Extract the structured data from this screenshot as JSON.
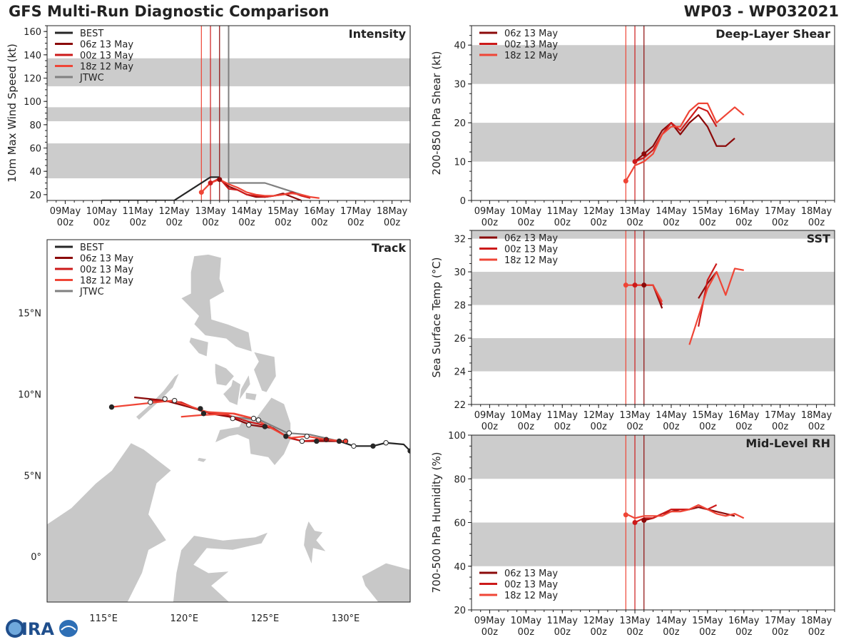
{
  "header": {
    "title": "GFS Multi-Run Diagnostic Comparison",
    "storm_id": "WP03 - WP032021"
  },
  "colors": {
    "best": "#262626",
    "jtwc": "#808080",
    "run_06z": "#8b0a0a",
    "run_00z": "#cc1a1a",
    "run_18z": "#ef4536",
    "band": "#cccccc",
    "land": "#c8c8c8"
  },
  "time_axis": {
    "labels": [
      "09May\n00z",
      "10May\n00z",
      "11May\n00z",
      "12May\n00z",
      "13May\n00z",
      "14May\n00z",
      "15May\n00z",
      "16May\n00z",
      "17May\n00z",
      "18May\n00z"
    ],
    "day_offsets": [
      0,
      1,
      2,
      3,
      4,
      5,
      6,
      7,
      8,
      9
    ],
    "range": [
      -0.5,
      9.5
    ],
    "init_lines": [
      {
        "run": "18z 12 May",
        "t": 3.75
      },
      {
        "run": "00z 13 May",
        "t": 4.0
      },
      {
        "run": "06z 13 May",
        "t": 4.25
      },
      {
        "run": "JTWC",
        "t": 4.5
      }
    ]
  },
  "legend_runs": [
    "06z 13 May",
    "00z 13 May",
    "18z 12 May"
  ],
  "chart_data": [
    {
      "id": "intensity",
      "type": "line",
      "title": "Intensity",
      "ylabel": "10m Max Wind Speed (kt)",
      "ylim": [
        15,
        165
      ],
      "yticks": [
        20,
        40,
        60,
        80,
        100,
        120,
        140,
        160
      ],
      "bands": [
        [
          34,
          64
        ],
        [
          83,
          95
        ],
        [
          113,
          137
        ]
      ],
      "legend": [
        "BEST",
        "06z 13 May",
        "00z 13 May",
        "18z 12 May",
        "JTWC"
      ],
      "series": [
        {
          "name": "BEST",
          "color_key": "best",
          "x": [
            1,
            2,
            3,
            4,
            4.25
          ],
          "y": [
            15,
            15,
            15,
            35,
            35
          ]
        },
        {
          "name": "JTWC",
          "color_key": "jtwc",
          "x": [
            4.5,
            5.5,
            6.5
          ],
          "y": [
            30,
            30,
            20
          ]
        },
        {
          "name": "06z 13 May",
          "color_key": "run_06z",
          "x": [
            4.25,
            4.5,
            4.75,
            5,
            5.25,
            5.5,
            5.75,
            6,
            6.25,
            6.5
          ],
          "y": [
            33,
            27,
            24,
            20,
            18,
            18,
            19,
            21,
            18,
            15
          ]
        },
        {
          "name": "00z 13 May",
          "color_key": "run_00z",
          "x": [
            4,
            4.25,
            4.5,
            4.75,
            5,
            5.25,
            5.5,
            5.75,
            6,
            6.25,
            6.5,
            6.75
          ],
          "y": [
            30,
            34,
            25,
            24,
            20,
            19,
            18,
            19,
            20,
            22,
            19,
            17
          ]
        },
        {
          "name": "18z 12 May",
          "color_key": "run_18z",
          "x": [
            3.75,
            4,
            4.25,
            4.5,
            4.75,
            5,
            5.25,
            5.5,
            5.75,
            6,
            6.25,
            6.5,
            6.75,
            7
          ],
          "y": [
            22,
            30,
            33,
            29,
            26,
            22,
            20,
            19,
            19,
            20,
            21,
            20,
            18,
            17
          ]
        }
      ]
    },
    {
      "id": "shear",
      "type": "line",
      "title": "Deep-Layer Shear",
      "ylabel": "200-850 hPa Shear (kt)",
      "ylim": [
        0,
        45
      ],
      "yticks": [
        0,
        10,
        20,
        30,
        40
      ],
      "bands": [
        [
          10,
          20
        ],
        [
          30,
          40
        ]
      ],
      "legend": [
        "06z 13 May",
        "00z 13 May",
        "18z 12 May"
      ],
      "series": [
        {
          "name": "06z 13 May",
          "color_key": "run_06z",
          "x": [
            4,
            4.25,
            4.5,
            4.75,
            5,
            5.25,
            5.5,
            5.75,
            6,
            6.25,
            6.5,
            6.75
          ],
          "y": [
            10,
            12,
            14,
            18,
            20,
            17,
            20,
            22,
            19,
            14,
            14,
            16
          ]
        },
        {
          "name": "00z 13 May",
          "color_key": "run_00z",
          "x": [
            4,
            4.25,
            4.5,
            4.75,
            5,
            5.25,
            5.5,
            5.75,
            6,
            6.25
          ],
          "y": [
            10,
            11,
            13,
            17,
            20,
            18,
            21,
            24,
            23,
            19
          ]
        },
        {
          "name": "18z 12 May",
          "color_key": "run_18z",
          "x": [
            3.75,
            4,
            4.25,
            4.5,
            4.75,
            5,
            5.25,
            5.5,
            5.75,
            6,
            6.25,
            6.5,
            6.75,
            7
          ],
          "y": [
            5,
            9,
            10,
            12,
            17,
            19,
            19,
            23,
            25,
            25,
            20,
            22,
            24,
            22
          ]
        }
      ],
      "markers": [
        {
          "color_key": "run_18z",
          "x": 3.75,
          "y": 5
        },
        {
          "color_key": "run_00z",
          "x": 4,
          "y": 10
        },
        {
          "color_key": "run_06z",
          "x": 4.25,
          "y": 12
        }
      ]
    },
    {
      "id": "sst",
      "type": "line",
      "title": "SST",
      "ylabel": "Sea Surface Temp (°C)",
      "ylim": [
        22,
        32.5
      ],
      "yticks": [
        22,
        24,
        26,
        28,
        30,
        32
      ],
      "bands": [
        [
          24,
          26
        ],
        [
          28,
          30
        ],
        [
          32,
          33
        ]
      ],
      "legend": [
        "06z 13 May",
        "00z 13 May",
        "18z 12 May"
      ],
      "series": [
        {
          "name": "06z 13 May",
          "color_key": "run_06z",
          "x": [
            4.25,
            4.5,
            4.75
          ],
          "y": [
            29.2,
            29.2,
            27.8
          ]
        },
        {
          "name": "06z 13 May b",
          "color_key": "run_06z",
          "x": [
            5.75,
            6,
            6.25
          ],
          "y": [
            28.4,
            29.3,
            30.0
          ]
        },
        {
          "name": "00z 13 May",
          "color_key": "run_00z",
          "x": [
            4,
            4.25,
            4.5,
            4.75
          ],
          "y": [
            29.2,
            29.2,
            29.2,
            28.0
          ]
        },
        {
          "name": "00z 13 May b",
          "color_key": "run_00z",
          "x": [
            5.75,
            6,
            6.25
          ],
          "y": [
            26.7,
            29.5,
            30.5
          ]
        },
        {
          "name": "18z 12 May",
          "color_key": "run_18z",
          "x": [
            3.75,
            4,
            4.25,
            4.5,
            4.75
          ],
          "y": [
            29.2,
            29.2,
            29.2,
            29.2,
            28.2
          ]
        },
        {
          "name": "18z 12 May b",
          "color_key": "run_18z",
          "x": [
            5.5,
            6,
            6.25,
            6.5,
            6.75,
            7
          ],
          "y": [
            25.6,
            29.0,
            30.0,
            28.6,
            30.2,
            30.1
          ]
        }
      ],
      "markers": [
        {
          "color_key": "run_18z",
          "x": 3.75,
          "y": 29.2
        },
        {
          "color_key": "run_00z",
          "x": 4,
          "y": 29.2
        },
        {
          "color_key": "run_06z",
          "x": 4.25,
          "y": 29.2
        }
      ]
    },
    {
      "id": "rh",
      "type": "line",
      "title": "Mid-Level RH",
      "ylabel": "700-500 hPa Humidity (%)",
      "ylim": [
        20,
        100
      ],
      "yticks": [
        20,
        40,
        60,
        80,
        100
      ],
      "bands": [
        [
          40,
          60
        ],
        [
          80,
          100
        ]
      ],
      "legend": [
        "06z 13 May",
        "00z 13 May",
        "18z 12 May"
      ],
      "series": [
        {
          "name": "06z 13 May",
          "color_key": "run_06z",
          "x": [
            4.25,
            4.5,
            4.75,
            5,
            5.25,
            5.5,
            5.75,
            6,
            6.25,
            6.5,
            6.75
          ],
          "y": [
            61,
            62,
            64,
            65,
            66,
            66,
            67,
            66,
            65,
            64,
            63
          ]
        },
        {
          "name": "00z 13 May",
          "color_key": "run_00z",
          "x": [
            4,
            4.25,
            4.5,
            4.75,
            5,
            5.25,
            5.5,
            5.75,
            6,
            6.25
          ],
          "y": [
            60,
            62,
            62,
            64,
            66,
            66,
            66,
            68,
            66,
            68
          ]
        },
        {
          "name": "18z 12 May",
          "color_key": "run_18z",
          "x": [
            3.75,
            4,
            4.25,
            4.5,
            4.75,
            5,
            5.25,
            5.5,
            5.75,
            6,
            6.25,
            6.5,
            6.75,
            7
          ],
          "y": [
            64,
            62,
            63,
            63,
            63,
            65,
            65,
            66,
            68,
            66,
            64,
            63,
            64,
            62
          ]
        }
      ],
      "markers": [
        {
          "color_key": "run_18z",
          "x": 3.75,
          "y": 63.5
        },
        {
          "color_key": "run_00z",
          "x": 4,
          "y": 60
        },
        {
          "color_key": "run_06z",
          "x": 4.25,
          "y": 61
        }
      ]
    },
    {
      "id": "track",
      "type": "scatter",
      "title": "Track",
      "legend": [
        "BEST",
        "06z 13 May",
        "00z 13 May",
        "18z 12 May",
        "JTWC"
      ],
      "xlim": [
        111.5,
        134
      ],
      "ylim": [
        -2.8,
        19.5
      ],
      "xticks": [
        115,
        120,
        125,
        130
      ],
      "xtick_labels": [
        "115°E",
        "120°E",
        "125°E",
        "130°E"
      ],
      "yticks": [
        0,
        5,
        10,
        15
      ],
      "ytick_labels": [
        "0°",
        "5°N",
        "10°N",
        "15°N"
      ],
      "series": [
        {
          "name": "BEST",
          "color_key": "best",
          "lon": [
            134,
            133.6,
            132.5,
            131.7,
            130.5,
            129.6
          ],
          "lat": [
            6.5,
            6.9,
            7.0,
            6.8,
            6.8,
            7.1
          ]
        },
        {
          "name": "JTWC",
          "color_key": "jtwc",
          "lon": [
            129.6,
            127.8,
            126.4,
            124.7,
            123.0,
            121.0,
            118.9
          ],
          "lat": [
            7.1,
            7.5,
            7.6,
            8.4,
            8.6,
            9.0,
            9.6
          ]
        },
        {
          "name": "06z 13 May",
          "color_key": "run_06z",
          "lon": [
            129.8,
            128.3,
            127.3,
            126.5,
            125.5,
            124.1,
            122.8,
            121.6,
            120.7,
            118.8,
            116.9
          ],
          "lat": [
            7.1,
            7.1,
            7.1,
            7.3,
            7.9,
            8.1,
            8.6,
            8.8,
            9.1,
            9.6,
            9.8
          ]
        },
        {
          "name": "00z 13 May",
          "color_key": "run_00z",
          "lon": [
            129.6,
            128.7,
            127.3,
            126.3,
            125.3,
            124.0,
            122.7,
            121.2,
            119.8,
            118.0
          ],
          "lat": [
            7.1,
            7.2,
            7.1,
            7.4,
            8.0,
            8.3,
            8.7,
            8.9,
            9.5,
            9.6
          ]
        },
        {
          "name": "18z 12 May",
          "color_key": "run_18z",
          "lon": [
            130.0,
            128.8,
            127.6,
            126.5,
            125.4,
            124.3,
            123.1,
            121.4,
            119.3,
            115.5
          ],
          "lat": [
            7.1,
            7.2,
            7.4,
            7.3,
            7.9,
            8.5,
            8.8,
            8.9,
            9.6,
            9.2
          ]
        },
        {
          "name": "18z 12 May b",
          "color_key": "run_18z",
          "lon": [
            119.8,
            121.0,
            123.0,
            124.6
          ],
          "lat": [
            8.6,
            8.7,
            8.8,
            8.4
          ]
        }
      ],
      "points": [
        {
          "lon": 134.0,
          "lat": 6.5,
          "style": "filled",
          "color_key": "best"
        },
        {
          "lon": 132.5,
          "lat": 7.0,
          "style": "open",
          "color_key": "best"
        },
        {
          "lon": 131.7,
          "lat": 6.8,
          "style": "filled",
          "color_key": "best"
        },
        {
          "lon": 130.5,
          "lat": 6.8,
          "style": "open",
          "color_key": "best"
        },
        {
          "lon": 129.6,
          "lat": 7.1,
          "style": "filled",
          "color_key": "best"
        },
        {
          "lon": 130.0,
          "lat": 7.1,
          "style": "filled",
          "color_key": "run_18z"
        },
        {
          "lon": 128.8,
          "lat": 7.2,
          "style": "filled",
          "color_key": "run_06z"
        },
        {
          "lon": 128.2,
          "lat": 7.1,
          "style": "filled",
          "color_key": "best"
        },
        {
          "lon": 127.3,
          "lat": 7.1,
          "style": "open",
          "color_key": "best"
        },
        {
          "lon": 127.6,
          "lat": 7.4,
          "style": "open",
          "color_key": "best"
        },
        {
          "lon": 126.3,
          "lat": 7.4,
          "style": "filled",
          "color_key": "best"
        },
        {
          "lon": 126.5,
          "lat": 7.6,
          "style": "open",
          "color_key": "best"
        },
        {
          "lon": 125.0,
          "lat": 8.0,
          "style": "filled",
          "color_key": "best"
        },
        {
          "lon": 124.6,
          "lat": 8.4,
          "style": "open",
          "color_key": "best"
        },
        {
          "lon": 124.3,
          "lat": 8.5,
          "style": "open",
          "color_key": "best"
        },
        {
          "lon": 124.0,
          "lat": 8.1,
          "style": "open",
          "color_key": "best"
        },
        {
          "lon": 123.0,
          "lat": 8.5,
          "style": "open",
          "color_key": "best"
        },
        {
          "lon": 121.2,
          "lat": 8.8,
          "style": "filled",
          "color_key": "best"
        },
        {
          "lon": 121.0,
          "lat": 9.1,
          "style": "filled",
          "color_key": "best"
        },
        {
          "lon": 119.4,
          "lat": 9.6,
          "style": "open",
          "color_key": "best"
        },
        {
          "lon": 118.8,
          "lat": 9.7,
          "style": "open",
          "color_key": "best"
        },
        {
          "lon": 117.9,
          "lat": 9.5,
          "style": "open",
          "color_key": "best"
        },
        {
          "lon": 115.5,
          "lat": 9.2,
          "style": "filled",
          "color_key": "best"
        }
      ]
    }
  ]
}
